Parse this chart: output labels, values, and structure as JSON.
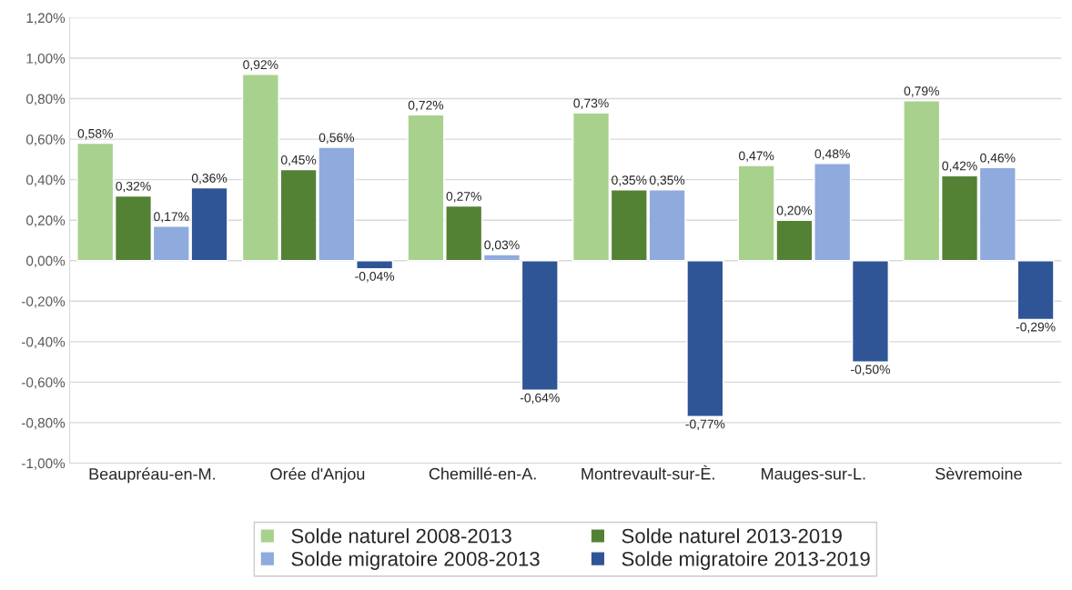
{
  "chart_data": {
    "type": "bar",
    "categories": [
      "Beaupréau-en-M.",
      "Orée d'Anjou",
      "Chemillé-en-A.",
      "Montrevault-sur-È.",
      "Mauges-sur-L.",
      "Sèvremoine"
    ],
    "series": [
      {
        "name": "Solde naturel 2008-2013",
        "color": "#a9d18e",
        "values": [
          0.58,
          0.92,
          0.72,
          0.73,
          0.47,
          0.79
        ],
        "value_labels": [
          "0,58%",
          "0,92%",
          "0,72%",
          "0,73%",
          "0,47%",
          "0,79%"
        ]
      },
      {
        "name": "Solde naturel 2013-2019",
        "color": "#548235",
        "values": [
          0.32,
          0.45,
          0.27,
          0.35,
          0.2,
          0.42
        ],
        "value_labels": [
          "0,32%",
          "0,45%",
          "0,27%",
          "0,35%",
          "0,20%",
          "0,42%"
        ]
      },
      {
        "name": "Solde migratoire 2008-2013",
        "color": "#8faadc",
        "values": [
          0.17,
          0.56,
          0.03,
          0.35,
          0.48,
          0.46
        ],
        "value_labels": [
          "0,17%",
          "0,56%",
          "0,03%",
          "0,35%",
          "0,48%",
          "0,46%"
        ]
      },
      {
        "name": "Solde migratoire 2013-2019",
        "color": "#2f5597",
        "values": [
          0.36,
          -0.04,
          -0.64,
          -0.77,
          -0.5,
          -0.29
        ],
        "value_labels": [
          "0,36%",
          "-0,04%",
          "-0,64%",
          "-0,77%",
          "-0,50%",
          "-0,29%"
        ]
      }
    ],
    "ylim": [
      -1.0,
      1.2
    ],
    "yticks": [
      {
        "value": -1.0,
        "label": "-1,00%"
      },
      {
        "value": -0.8,
        "label": "-0,80%"
      },
      {
        "value": -0.6,
        "label": "-0,60%"
      },
      {
        "value": -0.4,
        "label": "-0,40%"
      },
      {
        "value": -0.2,
        "label": "-0,20%"
      },
      {
        "value": 0.0,
        "label": "0,00%"
      },
      {
        "value": 0.2,
        "label": "0,20%"
      },
      {
        "value": 0.4,
        "label": "0,40%"
      },
      {
        "value": 0.6,
        "label": "0,60%"
      },
      {
        "value": 0.8,
        "label": "0,80%"
      },
      {
        "value": 1.0,
        "label": "1,00%"
      },
      {
        "value": 1.2,
        "label": "1,20%"
      }
    ],
    "grid": "y",
    "legend": "bottom"
  }
}
